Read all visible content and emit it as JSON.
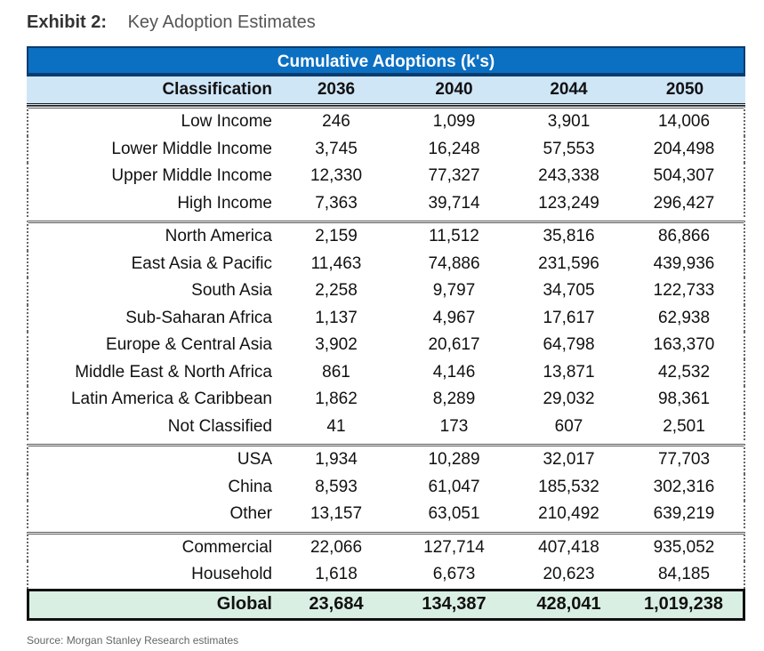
{
  "exhibit": {
    "label": "Exhibit 2:",
    "caption": "Key Adoption Estimates"
  },
  "table": {
    "banner": "Cumulative Adoptions (k's)",
    "headers": [
      "Classification",
      "2036",
      "2040",
      "2044",
      "2050"
    ],
    "groups": [
      [
        [
          "Low Income",
          "246",
          "1,099",
          "3,901",
          "14,006"
        ],
        [
          "Lower Middle Income",
          "3,745",
          "16,248",
          "57,553",
          "204,498"
        ],
        [
          "Upper Middle Income",
          "12,330",
          "77,327",
          "243,338",
          "504,307"
        ],
        [
          "High Income",
          "7,363",
          "39,714",
          "123,249",
          "296,427"
        ]
      ],
      [
        [
          "North America",
          "2,159",
          "11,512",
          "35,816",
          "86,866"
        ],
        [
          "East Asia & Pacific",
          "11,463",
          "74,886",
          "231,596",
          "439,936"
        ],
        [
          "South Asia",
          "2,258",
          "9,797",
          "34,705",
          "122,733"
        ],
        [
          "Sub-Saharan Africa",
          "1,137",
          "4,967",
          "17,617",
          "62,938"
        ],
        [
          "Europe & Central Asia",
          "3,902",
          "20,617",
          "64,798",
          "163,370"
        ],
        [
          "Middle East & North Africa",
          "861",
          "4,146",
          "13,871",
          "42,532"
        ],
        [
          "Latin America & Caribbean",
          "1,862",
          "8,289",
          "29,032",
          "98,361"
        ],
        [
          "Not Classified",
          "41",
          "173",
          "607",
          "2,501"
        ]
      ],
      [
        [
          "USA",
          "1,934",
          "10,289",
          "32,017",
          "77,703"
        ],
        [
          "China",
          "8,593",
          "61,047",
          "185,532",
          "302,316"
        ],
        [
          "Other",
          "13,157",
          "63,051",
          "210,492",
          "639,219"
        ]
      ],
      [
        [
          "Commercial",
          "22,066",
          "127,714",
          "407,418",
          "935,052"
        ],
        [
          "Household",
          "1,618",
          "6,673",
          "20,623",
          "84,185"
        ]
      ]
    ],
    "total": [
      "Global",
      "23,684",
      "134,387",
      "428,041",
      "1,019,238"
    ]
  },
  "source": "Source: Morgan Stanley Research estimates",
  "colors": {
    "banner": "#0b6fc2",
    "header": "#cfe6f7",
    "total": "#d9efe3"
  }
}
